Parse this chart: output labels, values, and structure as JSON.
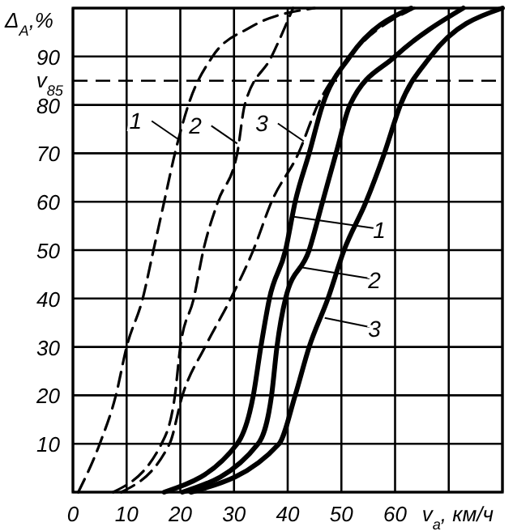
{
  "chart_data": {
    "type": "line",
    "xlabel": "v$_{a}$, км/ч",
    "ylabel": "Δ$_{A}$,%",
    "xlim": [
      0,
      80
    ],
    "xticks": [
      0,
      10,
      20,
      30,
      40,
      50,
      60,
      {
        "value": 70,
        "label": null
      },
      {
        "value": 80,
        "label": null
      }
    ],
    "ylim": [
      0,
      100
    ],
    "yticks": [
      {
        "value": 0,
        "label": null
      },
      10,
      20,
      30,
      40,
      50,
      60,
      70,
      80,
      90,
      {
        "value": 100,
        "label": null
      }
    ],
    "grid": true,
    "marker": "none",
    "series": [
      {
        "color": "#000000",
        "line_style": "dashed",
        "x": [
          1,
          5,
          8,
          10,
          13,
          15,
          17,
          19,
          21.5,
          26,
          33,
          45
        ],
        "values": [
          0,
          10,
          20,
          30,
          40,
          50,
          60,
          70,
          80,
          90,
          96,
          100
        ]
      },
      {
        "color": "#000000",
        "line_style": "dashed",
        "x": [
          7.5,
          16.5,
          19,
          20,
          22.5,
          24.3,
          27,
          30.6,
          32,
          37,
          41
        ],
        "values": [
          0,
          10,
          20,
          30,
          40,
          50,
          60,
          70,
          80,
          90,
          100
        ]
      },
      {
        "color": "#000000",
        "line_style": "dashed",
        "x": [
          9,
          18,
          20.4,
          24.6,
          29.4,
          33.6,
          37,
          42,
          45.6,
          51.6,
          63.6
        ],
        "values": [
          0,
          10,
          20,
          30,
          40,
          50,
          60,
          70,
          80,
          90,
          100
        ]
      },
      {
        "color": "#000000",
        "line_style": "solid",
        "x": [
          17,
          30.6,
          33.6,
          35,
          36.6,
          39.6,
          41.4,
          44,
          46.5,
          51.6,
          63
        ],
        "values": [
          0,
          10,
          20,
          30,
          40,
          50,
          60,
          70,
          80,
          90,
          100
        ]
      },
      {
        "color": "#000000",
        "line_style": "solid",
        "x": [
          20.4,
          34.5,
          37,
          38,
          39.6,
          44,
          46.5,
          49,
          51.6,
          60,
          72.7
        ],
        "values": [
          0,
          10,
          20,
          30,
          40,
          50,
          60,
          70,
          80,
          90,
          100
        ]
      },
      {
        "color": "#000000",
        "line_style": "solid",
        "x": [
          22,
          38.4,
          41.4,
          44,
          47.5,
          50.5,
          54.6,
          58,
          61,
          66.6,
          80
        ],
        "values": [
          0,
          10,
          20,
          30,
          40,
          50,
          60,
          70,
          80,
          90,
          100
        ]
      }
    ],
    "ref_lines": [
      {
        "axis": "y",
        "value": 85,
        "label": "v$_{85}$",
        "line_style": "dashed",
        "color": "#000000"
      }
    ],
    "annotations": [
      {
        "text": "1",
        "x": 19.5,
        "y": 73
      },
      {
        "text": "2",
        "x": 30.6,
        "y": 72
      },
      {
        "text": "3",
        "x": 43,
        "y": 72.5
      },
      {
        "text": "1",
        "x": 40.6,
        "y": 57
      },
      {
        "text": "2",
        "x": 42.3,
        "y": 46.5
      },
      {
        "text": "3",
        "x": 46.9,
        "y": 36
      }
    ]
  }
}
